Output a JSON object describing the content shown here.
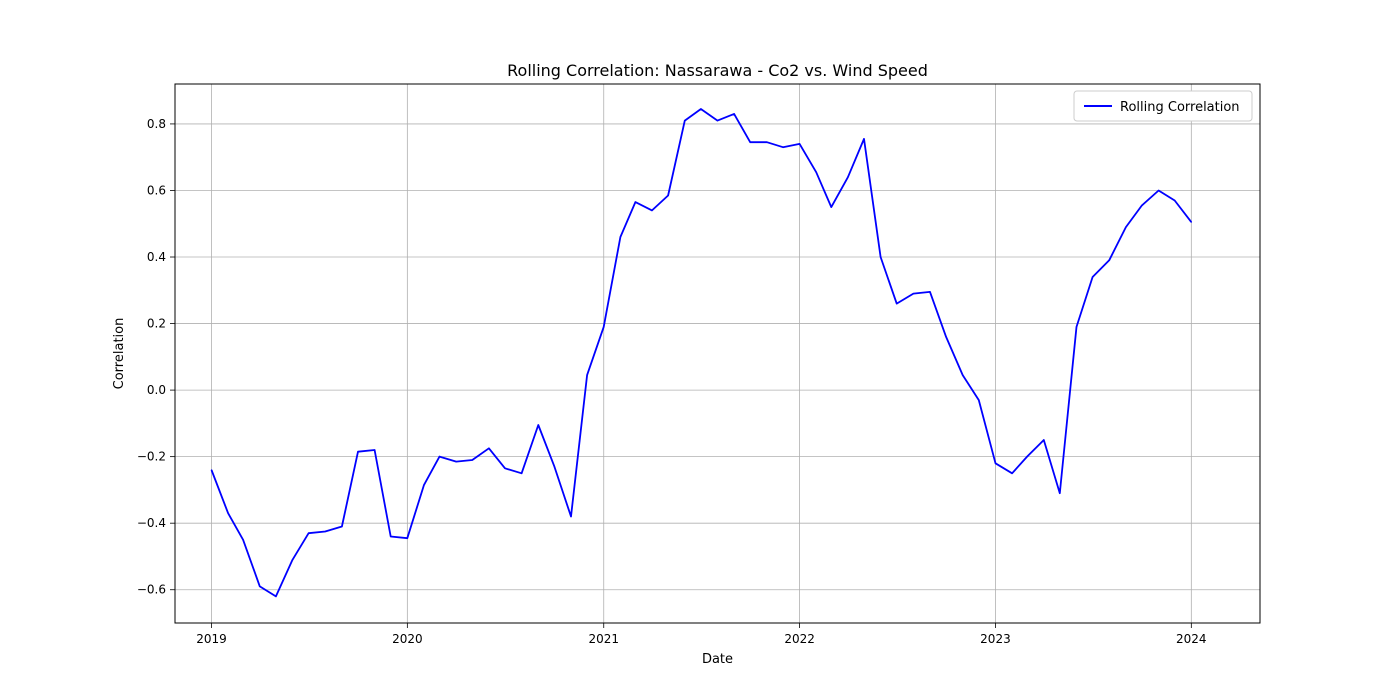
{
  "chart_data": {
    "type": "line",
    "title": "Rolling Correlation: Nassarawa - Co2 vs. Wind Speed",
    "xlabel": "Date",
    "ylabel": "Correlation",
    "xlim": [
      "2018-10-25",
      "2024-05-08"
    ],
    "ylim": [
      -0.7,
      0.92
    ],
    "x_ticks": [
      {
        "label": "2019",
        "date": "2019-01-01"
      },
      {
        "label": "2020",
        "date": "2020-01-01"
      },
      {
        "label": "2021",
        "date": "2021-01-01"
      },
      {
        "label": "2022",
        "date": "2022-01-01"
      },
      {
        "label": "2023",
        "date": "2023-01-01"
      },
      {
        "label": "2024",
        "date": "2024-01-01"
      }
    ],
    "y_ticks": [
      -0.6,
      -0.4,
      -0.2,
      0.0,
      0.2,
      0.4,
      0.6,
      0.8
    ],
    "y_tick_labels": [
      "−0.6",
      "−0.4",
      "−0.2",
      "0.0",
      "0.2",
      "0.4",
      "0.6",
      "0.8"
    ],
    "grid": true,
    "legend_position": "top-right",
    "line_color": "#0000ff",
    "series": [
      {
        "name": "Rolling Correlation",
        "x": [
          "2019-01-01",
          "2019-02-01",
          "2019-03-01",
          "2019-04-01",
          "2019-05-01",
          "2019-06-01",
          "2019-07-01",
          "2019-08-01",
          "2019-09-01",
          "2019-10-01",
          "2019-11-01",
          "2019-12-01",
          "2020-01-01",
          "2020-02-01",
          "2020-03-01",
          "2020-04-01",
          "2020-05-01",
          "2020-06-01",
          "2020-07-01",
          "2020-08-01",
          "2020-09-01",
          "2020-10-01",
          "2020-11-01",
          "2020-12-01",
          "2021-01-01",
          "2021-02-01",
          "2021-03-01",
          "2021-04-01",
          "2021-05-01",
          "2021-06-01",
          "2021-07-01",
          "2021-08-01",
          "2021-09-01",
          "2021-10-01",
          "2021-11-01",
          "2021-12-01",
          "2022-01-01",
          "2022-02-01",
          "2022-03-01",
          "2022-04-01",
          "2022-05-01",
          "2022-06-01",
          "2022-07-01",
          "2022-08-01",
          "2022-09-01",
          "2022-10-01",
          "2022-11-01",
          "2022-12-01",
          "2023-01-01",
          "2023-02-01",
          "2023-03-01",
          "2023-04-01",
          "2023-05-01",
          "2023-06-01",
          "2023-07-01",
          "2023-08-01",
          "2023-09-01",
          "2023-10-01",
          "2023-11-01",
          "2023-12-01",
          "2024-01-01"
        ],
        "y": [
          -0.24,
          -0.37,
          -0.45,
          -0.59,
          -0.62,
          -0.51,
          -0.43,
          -0.425,
          -0.41,
          -0.185,
          -0.18,
          -0.44,
          -0.445,
          -0.285,
          -0.2,
          -0.215,
          -0.21,
          -0.175,
          -0.235,
          -0.25,
          -0.105,
          -0.23,
          -0.38,
          0.045,
          0.19,
          0.46,
          0.565,
          0.54,
          0.585,
          0.81,
          0.845,
          0.81,
          0.83,
          0.745,
          0.745,
          0.73,
          0.74,
          0.655,
          0.55,
          0.64,
          0.755,
          0.4,
          0.26,
          0.29,
          0.295,
          0.16,
          0.045,
          -0.03,
          -0.22,
          -0.25,
          -0.2,
          -0.15,
          -0.31,
          0.19,
          0.34,
          0.39,
          0.49,
          0.555,
          0.6,
          0.57,
          0.505
        ]
      }
    ]
  }
}
